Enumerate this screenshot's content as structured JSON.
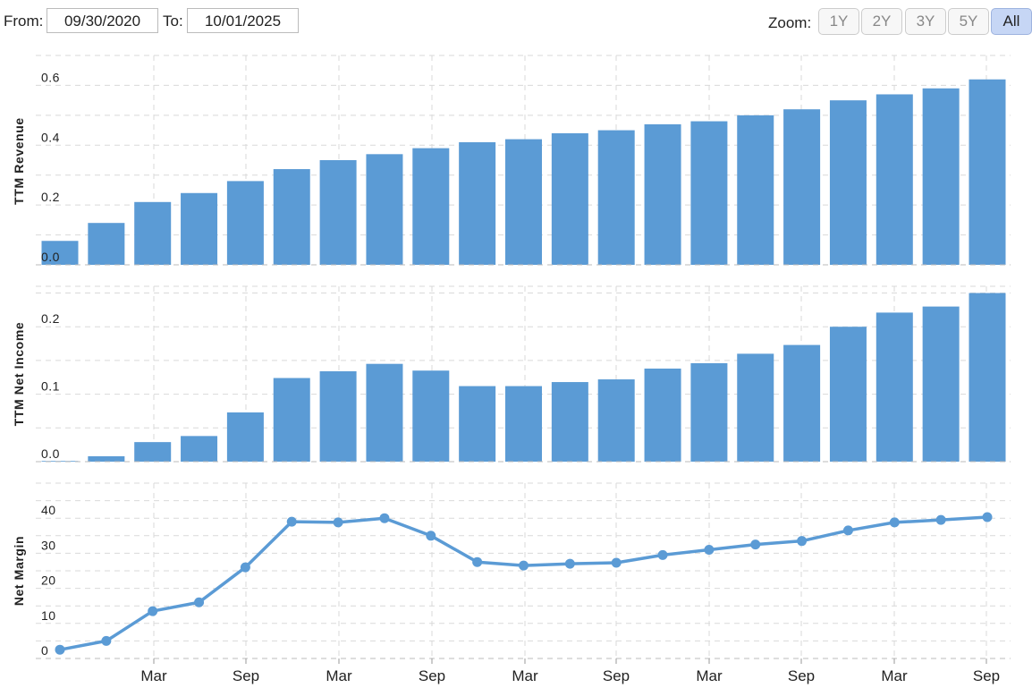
{
  "controls": {
    "from_label": "From:",
    "from_value": "09/30/2020",
    "to_label": "To:",
    "to_value": "10/01/2025",
    "zoom_label": "Zoom:",
    "zoom_options": [
      "1Y",
      "2Y",
      "3Y",
      "5Y",
      "All"
    ],
    "zoom_selected": "All"
  },
  "colors": {
    "bar": "#5b9bd5",
    "line": "#5b9bd5",
    "grid": "#d9d9d9",
    "axis": "#bbbbbb"
  },
  "chart_data": [
    {
      "type": "bar",
      "ylabel": "TTM Revenue",
      "ylim": [
        0,
        0.7
      ],
      "yticks": [
        "0.0",
        "0.2",
        "0.4",
        "0.6"
      ],
      "values": [
        0.08,
        0.14,
        0.21,
        0.24,
        0.28,
        0.32,
        0.35,
        0.37,
        0.39,
        0.41,
        0.42,
        0.44,
        0.45,
        0.47,
        0.48,
        0.5,
        0.52,
        0.55,
        0.57,
        0.59,
        0.62
      ]
    },
    {
      "type": "bar",
      "ylabel": "TTM Net Income",
      "ylim": [
        0,
        0.26
      ],
      "yticks": [
        "0.0",
        "0.1",
        "0.2"
      ],
      "values": [
        0.001,
        0.008,
        0.029,
        0.038,
        0.073,
        0.124,
        0.134,
        0.145,
        0.135,
        0.112,
        0.112,
        0.118,
        0.122,
        0.138,
        0.146,
        0.16,
        0.173,
        0.2,
        0.221,
        0.23,
        0.25
      ]
    },
    {
      "type": "line",
      "ylabel": "Net Margin",
      "ylim": [
        0,
        50
      ],
      "yticks": [
        "0",
        "10",
        "20",
        "30",
        "40"
      ],
      "values": [
        2.5,
        5,
        13.5,
        16,
        26,
        39,
        38.8,
        40,
        35,
        27.5,
        26.5,
        27,
        27.3,
        29.5,
        31,
        32.5,
        33.5,
        36.5,
        38.8,
        39.5,
        40.3
      ]
    }
  ],
  "x_axis": {
    "tick_labels": [
      "Mar",
      "Sep",
      "Mar",
      "Sep",
      "Mar",
      "Sep",
      "Mar",
      "Sep",
      "Mar",
      "Sep"
    ]
  }
}
